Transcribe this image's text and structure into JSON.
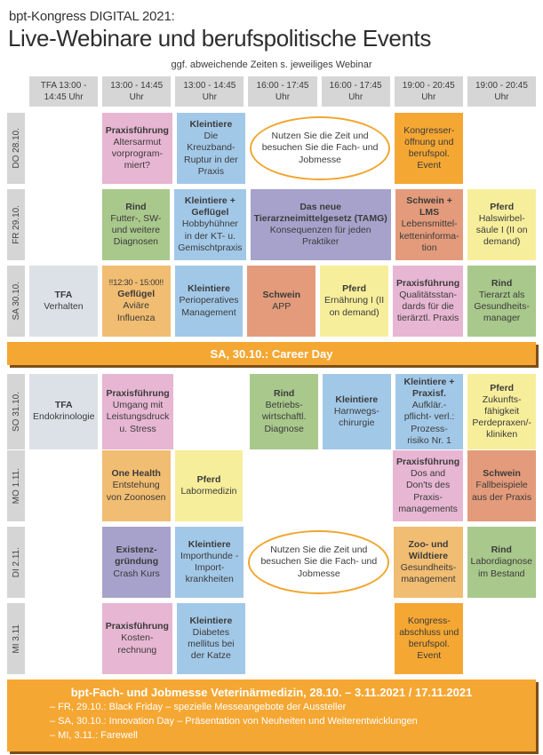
{
  "page": {
    "title_line1": "bpt-Kongress DIGITAL 2021:",
    "title_line2": "Live-Webinare und berufspolitische Events",
    "subtitle": "ggf. abweichende Zeiten s. jeweiliges Webinar"
  },
  "colors": {
    "header_gray": "#d6d6d6",
    "day_label_gray": "#d5d5d5",
    "pink": "#e7b6d2",
    "blue": "#a2c8e8",
    "green": "#a9c88c",
    "purple": "#a6a2cb",
    "salmon": "#e39b7b",
    "yellow": "#f7ee9b",
    "orange_light": "#f1bd72",
    "orange_strong": "#f5a733",
    "tfa_gray_blue": "#dbe1e7",
    "banner_shadow": "#7d4e1a",
    "oval_border": "#f0a62f"
  },
  "columns": [
    "TFA 13:00 - 14:45 Uhr",
    "13:00 - 14:45 Uhr",
    "13:00 - 14:45 Uhr",
    "16:00 - 17:45 Uhr",
    "16:00 - 17:45 Uhr",
    "19:00 - 20:45 Uhr",
    "19:00 - 20:45 Uhr"
  ],
  "messe_oval": "Nutzen Sie die Zeit und besuchen Sie die Fach- und Jobmesse",
  "career_banner": "SA, 30.10.: Career Day",
  "rows": [
    {
      "day": "DO 28.10.",
      "cells": [
        {
          "col": 2,
          "color": "pink",
          "title": "Praxisführung",
          "body": "Altersarmut vorprogram- miert?"
        },
        {
          "col": 3,
          "color": "blue",
          "title": "Kleintiere",
          "body": "Die Kreuzband- Ruptur in der Praxis"
        },
        {
          "col": 4,
          "span": 2,
          "type": "oval"
        },
        {
          "col": 6,
          "color": "orange_strong",
          "body": "Kongresser- öffnung und berufspol. Event"
        }
      ]
    },
    {
      "day": "FR 29.10.",
      "cells": [
        {
          "col": 2,
          "color": "green",
          "title": "Rind",
          "body": "Futter-, SW- und weitere Diagnosen"
        },
        {
          "col": 3,
          "color": "blue",
          "title": "Kleintiere + Geflügel",
          "body": "Hobbyhühner in der KT- u. Gemischtpraxis"
        },
        {
          "col": 4,
          "span": 2,
          "color": "purple",
          "title": "Das neue Tierarzneimittelgesetz (TAMG)",
          "body": "Konsequenzen für jeden Praktiker"
        },
        {
          "col": 6,
          "color": "salmon",
          "title": "Schwein + LMS",
          "body": "Lebensmittel- ketteninforma- tion"
        },
        {
          "col": 7,
          "color": "yellow",
          "title": "Pferd",
          "body": "Halswirbel- säule I (II on demand)"
        }
      ]
    },
    {
      "day": "SA 30.10.",
      "cells": [
        {
          "col": 1,
          "color": "tfa",
          "title": "TFA",
          "body": "Verhalten"
        },
        {
          "col": 2,
          "color": "orange_light",
          "pre": "!!12:30 - 15:00!!",
          "title": "Geflügel",
          "body": "Aviäre Influenza"
        },
        {
          "col": 3,
          "color": "blue",
          "title": "Kleintiere",
          "body": "Perioperatives Management"
        },
        {
          "col": 4,
          "color": "salmon",
          "title": "Schwein",
          "body": "APP"
        },
        {
          "col": 5,
          "color": "yellow",
          "title": "Pferd",
          "body": "Ernährung I (II on demand)"
        },
        {
          "col": 6,
          "color": "pink",
          "title": "Praxisführung",
          "body": "Qualitätsstan- dards für die tierärztl. Praxis"
        },
        {
          "col": 7,
          "color": "green",
          "title": "Rind",
          "body": "Tierarzt als Gesundheits- manager"
        }
      ]
    },
    {
      "day": "SO 31.10.",
      "cells": [
        {
          "col": 1,
          "color": "tfa",
          "title": "TFA",
          "body": "Endokrinologie"
        },
        {
          "col": 2,
          "color": "pink",
          "title": "Praxisführung",
          "body": "Umgang mit Leistungsdruck u. Stress"
        },
        {
          "col": 4,
          "color": "green",
          "title": "Rind",
          "body": "Betriebs- wirtschaftl. Diagnose"
        },
        {
          "col": 5,
          "color": "blue",
          "title": "Kleintiere",
          "body": "Harnwegs- chirurgie"
        },
        {
          "col": 6,
          "color": "blue",
          "title": "Kleintiere + Praxisf.",
          "body": "Aufklär.-pflicht- verl.: Prozess- risiko Nr. 1"
        },
        {
          "col": 7,
          "color": "yellow",
          "title": "Pferd",
          "body": "Zukunfts- fähigkeit Perdepraxen/- kliniken"
        }
      ]
    },
    {
      "day": "MO 1.11.",
      "cells": [
        {
          "col": 2,
          "color": "orange_light",
          "title": "One Health",
          "body": "Entstehung von Zoonosen"
        },
        {
          "col": 3,
          "color": "yellow",
          "title": "Pferd",
          "body": "Labormedizin"
        },
        {
          "col": 6,
          "color": "pink",
          "title": "Praxisführung",
          "body": "Dos and Don'ts des Praxis- managements"
        },
        {
          "col": 7,
          "color": "salmon",
          "title": "Schwein",
          "body": "Fallbeispiele aus der Praxis"
        }
      ]
    },
    {
      "day": "DI 2.11.",
      "cells": [
        {
          "col": 2,
          "color": "purple",
          "title": "Existenz- gründung",
          "body": "Crash Kurs"
        },
        {
          "col": 3,
          "color": "blue",
          "title": "Kleintiere",
          "body": "Importhunde - Import- krankheiten"
        },
        {
          "col": 4,
          "span": 2,
          "type": "oval"
        },
        {
          "col": 6,
          "color": "orange_light",
          "title": "Zoo- und Wildtiere",
          "body": "Gesundheits- management"
        },
        {
          "col": 7,
          "color": "green",
          "title": "Rind",
          "body": "Labordiagnose im Bestand"
        }
      ]
    },
    {
      "day": "MI 3.11",
      "cells": [
        {
          "col": 2,
          "color": "pink",
          "title": "Praxisführung",
          "body": "Kosten- rechnung"
        },
        {
          "col": 3,
          "color": "blue",
          "title": "Kleintiere",
          "body": "Diabetes mellitus bei der Katze"
        },
        {
          "col": 6,
          "color": "orange_strong",
          "body": "Kongress- abschluss und berufspol. Event"
        }
      ]
    }
  ],
  "footer": {
    "title": "bpt-Fach- und Jobmesse Veterinärmedizin, 28.10. – 3.11.2021 / 17.11.2021",
    "bullets": [
      "– FR, 29.10.: Black Friday – spezielle Messeangebote der Aussteller",
      "– SA, 30.10.: Innovation Day – Präsentation von Neuheiten und Weiterentwicklungen",
      "– MI, 3.11.: Farewell"
    ]
  }
}
